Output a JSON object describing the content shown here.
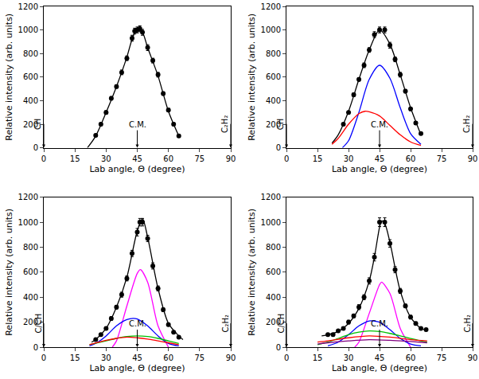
{
  "chart_data": [
    {
      "type": "line",
      "xlabel": "Lab angle, Θ (degree)",
      "ylabel": "Relative intensity (arb. units)",
      "xlim": [
        0,
        90
      ],
      "xticks": [
        0,
        15,
        30,
        45,
        60,
        75,
        90
      ],
      "ylim": [
        0,
        1200
      ],
      "yticks": [
        0,
        200,
        400,
        600,
        800,
        1000,
        1200
      ],
      "grid": false,
      "annotations": [
        {
          "text": "CH",
          "x": 0
        },
        {
          "text": "C.M.",
          "x": 45
        },
        {
          "text": "C₂H₂",
          "x": 90
        }
      ],
      "series": [
        {
          "type": "scatter",
          "marker": "circle",
          "color": "#000000",
          "x": [
            25,
            27.5,
            30,
            32.5,
            35,
            37.5,
            40,
            42.5,
            43.75,
            45,
            46.25,
            47.5,
            50,
            52.5,
            55,
            57.5,
            60,
            62.5,
            65
          ],
          "values": [
            105,
            200,
            300,
            420,
            520,
            640,
            760,
            930,
            990,
            1000,
            1010,
            980,
            850,
            740,
            620,
            460,
            320,
            200,
            100
          ],
          "errors": [
            10,
            12,
            15,
            15,
            15,
            20,
            20,
            25,
            25,
            25,
            25,
            25,
            25,
            20,
            20,
            15,
            15,
            12,
            10
          ]
        },
        {
          "type": "line",
          "line_style": "solid",
          "color": "#000000",
          "x": [
            21,
            25,
            30,
            35,
            40,
            42.5,
            45,
            47.5,
            50,
            55,
            60,
            65
          ],
          "values": [
            0,
            100,
            300,
            520,
            770,
            920,
            1010,
            980,
            850,
            610,
            310,
            100
          ]
        }
      ]
    },
    {
      "type": "line",
      "xlabel": "Lab angle, Θ (degree)",
      "ylabel": "Relative intensity (arb. units)",
      "xlim": [
        0,
        90
      ],
      "xticks": [
        0,
        15,
        30,
        45,
        60,
        75,
        90
      ],
      "ylim": [
        0,
        1200
      ],
      "yticks": [
        0,
        200,
        400,
        600,
        800,
        1000,
        1200
      ],
      "grid": false,
      "annotations": [
        {
          "text": "CH",
          "x": 0
        },
        {
          "text": "C.M.",
          "x": 45
        },
        {
          "text": "C₂H₂",
          "x": 90
        }
      ],
      "series": [
        {
          "type": "scatter",
          "marker": "circle",
          "color": "#000000",
          "x": [
            27.5,
            30,
            32.5,
            35,
            37.5,
            40,
            42.5,
            45,
            47.5,
            50,
            52.5,
            55,
            57.5,
            60,
            62.5,
            65
          ],
          "values": [
            200,
            300,
            450,
            580,
            700,
            830,
            960,
            1000,
            1000,
            870,
            750,
            620,
            480,
            330,
            210,
            120
          ],
          "errors": [
            10,
            12,
            15,
            15,
            20,
            20,
            25,
            25,
            25,
            25,
            20,
            20,
            15,
            15,
            12,
            10
          ]
        },
        {
          "type": "line",
          "line_style": "solid",
          "color": "#000000",
          "x": [
            22,
            25,
            30,
            35,
            40,
            45,
            50,
            55,
            60,
            65
          ],
          "values": [
            40,
            110,
            310,
            580,
            830,
            1000,
            880,
            620,
            340,
            110
          ]
        },
        {
          "type": "line",
          "line_style": "solid",
          "color": "#0000ff",
          "x": [
            27,
            30,
            35,
            40,
            45,
            50,
            55,
            60,
            65
          ],
          "values": [
            0,
            60,
            300,
            580,
            700,
            590,
            340,
            120,
            30
          ]
        },
        {
          "type": "line",
          "line_style": "solid",
          "color": "#ff0000",
          "x": [
            22,
            25,
            30,
            35,
            38,
            40,
            45,
            50,
            55,
            60,
            65
          ],
          "values": [
            30,
            80,
            200,
            290,
            310,
            305,
            270,
            190,
            110,
            50,
            20
          ]
        }
      ]
    },
    {
      "type": "line",
      "xlabel": "Lab angle, Θ (degree)",
      "ylabel": "Relative intensity (arb. units)",
      "xlim": [
        0,
        90
      ],
      "xticks": [
        0,
        15,
        30,
        45,
        60,
        75,
        90
      ],
      "ylim": [
        0,
        1200
      ],
      "yticks": [
        0,
        200,
        400,
        600,
        800,
        1000,
        1200
      ],
      "grid": false,
      "annotations": [
        {
          "text": "C/CH",
          "x": 0
        },
        {
          "text": "C.M.",
          "x": 45
        },
        {
          "text": "C₂H₂",
          "x": 90
        }
      ],
      "series": [
        {
          "type": "scatter",
          "marker": "circle",
          "color": "#000000",
          "x": [
            25,
            27.5,
            30,
            32.5,
            35,
            37.5,
            40,
            42.5,
            45,
            46.25,
            47.5,
            50,
            52.5,
            55,
            57.5,
            60,
            62.5,
            65
          ],
          "values": [
            60,
            100,
            150,
            230,
            320,
            420,
            550,
            750,
            920,
            1000,
            1000,
            870,
            650,
            470,
            300,
            180,
            120,
            80
          ],
          "errors": [
            8,
            10,
            12,
            15,
            15,
            20,
            20,
            25,
            30,
            30,
            30,
            25,
            25,
            20,
            15,
            12,
            10,
            8
          ]
        },
        {
          "type": "line",
          "line_style": "solid",
          "color": "#000000",
          "x": [
            23,
            25,
            30,
            35,
            40,
            45,
            47.5,
            50,
            55,
            60,
            65,
            67
          ],
          "values": [
            40,
            60,
            150,
            320,
            560,
            930,
            1030,
            880,
            470,
            190,
            90,
            60
          ]
        },
        {
          "type": "line",
          "line_style": "solid",
          "color": "#ff00ff",
          "x": [
            33,
            35,
            40,
            45,
            46.5,
            50,
            55,
            60
          ],
          "values": [
            0,
            50,
            330,
            590,
            620,
            520,
            170,
            0
          ]
        },
        {
          "type": "line",
          "line_style": "solid",
          "color": "#0000ff",
          "x": [
            22,
            25,
            30,
            35,
            40,
            43,
            45,
            50,
            55,
            60,
            65
          ],
          "values": [
            10,
            30,
            90,
            170,
            220,
            230,
            225,
            170,
            90,
            30,
            10
          ]
        },
        {
          "type": "line",
          "line_style": "solid",
          "color": "#00c000",
          "x": [
            22,
            30,
            35,
            40,
            45,
            50,
            55,
            60,
            65
          ],
          "values": [
            20,
            50,
            70,
            85,
            90,
            85,
            70,
            50,
            30
          ]
        },
        {
          "type": "line",
          "line_style": "solid",
          "color": "#ff0000",
          "x": [
            22,
            30,
            35,
            40,
            45,
            50,
            55,
            60,
            65
          ],
          "values": [
            20,
            55,
            70,
            80,
            75,
            65,
            50,
            35,
            20
          ]
        }
      ]
    },
    {
      "type": "line",
      "xlabel": "Lab angle, Θ (degree)",
      "ylabel": "Relative intensity (arb. units)",
      "xlim": [
        0,
        90
      ],
      "xticks": [
        0,
        15,
        30,
        45,
        60,
        75,
        90
      ],
      "ylim": [
        0,
        1200
      ],
      "yticks": [
        0,
        200,
        400,
        600,
        800,
        1000,
        1200
      ],
      "grid": false,
      "annotations": [
        {
          "text": "C/CH",
          "x": 0
        },
        {
          "text": "C.M.",
          "x": 45
        },
        {
          "text": "C₂H₂",
          "x": 90
        }
      ],
      "series": [
        {
          "type": "scatter",
          "marker": "circle",
          "color": "#000000",
          "x": [
            20,
            22.5,
            25,
            27.5,
            30,
            32.5,
            35,
            37.5,
            40,
            42.5,
            45,
            47.5,
            50,
            52.5,
            55,
            57.5,
            60,
            62.5,
            65,
            67.5
          ],
          "values": [
            100,
            100,
            130,
            150,
            200,
            250,
            320,
            400,
            530,
            720,
            1000,
            1000,
            830,
            620,
            450,
            330,
            240,
            190,
            150,
            140
          ],
          "errors": [
            10,
            10,
            12,
            12,
            15,
            15,
            20,
            20,
            25,
            30,
            35,
            35,
            30,
            25,
            20,
            15,
            15,
            12,
            12,
            10
          ]
        },
        {
          "type": "line",
          "line_style": "solid",
          "color": "#000000",
          "x": [
            17,
            20,
            25,
            30,
            35,
            40,
            42.5,
            45,
            46,
            47.5,
            50,
            55,
            60,
            65,
            67.5
          ],
          "values": [
            90,
            100,
            125,
            190,
            310,
            530,
            720,
            960,
            1010,
            990,
            840,
            450,
            240,
            150,
            140
          ]
        },
        {
          "type": "line",
          "line_style": "solid",
          "color": "#ff00ff",
          "x": [
            33,
            35,
            40,
            45,
            46,
            50,
            55,
            60
          ],
          "values": [
            0,
            40,
            270,
            500,
            520,
            430,
            150,
            0
          ]
        },
        {
          "type": "line",
          "line_style": "solid",
          "color": "#0000ff",
          "x": [
            20,
            25,
            30,
            35,
            40,
            42,
            45,
            50,
            55,
            60,
            65
          ],
          "values": [
            10,
            40,
            100,
            170,
            210,
            210,
            200,
            140,
            70,
            25,
            10
          ]
        },
        {
          "type": "line",
          "line_style": "solid",
          "color": "#00c000",
          "x": [
            15,
            20,
            25,
            30,
            35,
            40,
            45,
            50,
            55,
            60,
            65,
            68
          ],
          "values": [
            20,
            40,
            70,
            100,
            120,
            130,
            125,
            110,
            90,
            70,
            50,
            40
          ]
        },
        {
          "type": "line",
          "line_style": "solid",
          "color": "#ff0000",
          "x": [
            15,
            20,
            30,
            40,
            50,
            60,
            68
          ],
          "values": [
            40,
            50,
            75,
            90,
            80,
            60,
            50
          ]
        },
        {
          "type": "line",
          "line_style": "solid",
          "color": "#800080",
          "x": [
            15,
            20,
            30,
            40,
            50,
            60,
            68
          ],
          "values": [
            25,
            35,
            50,
            60,
            55,
            45,
            35
          ]
        }
      ]
    }
  ]
}
